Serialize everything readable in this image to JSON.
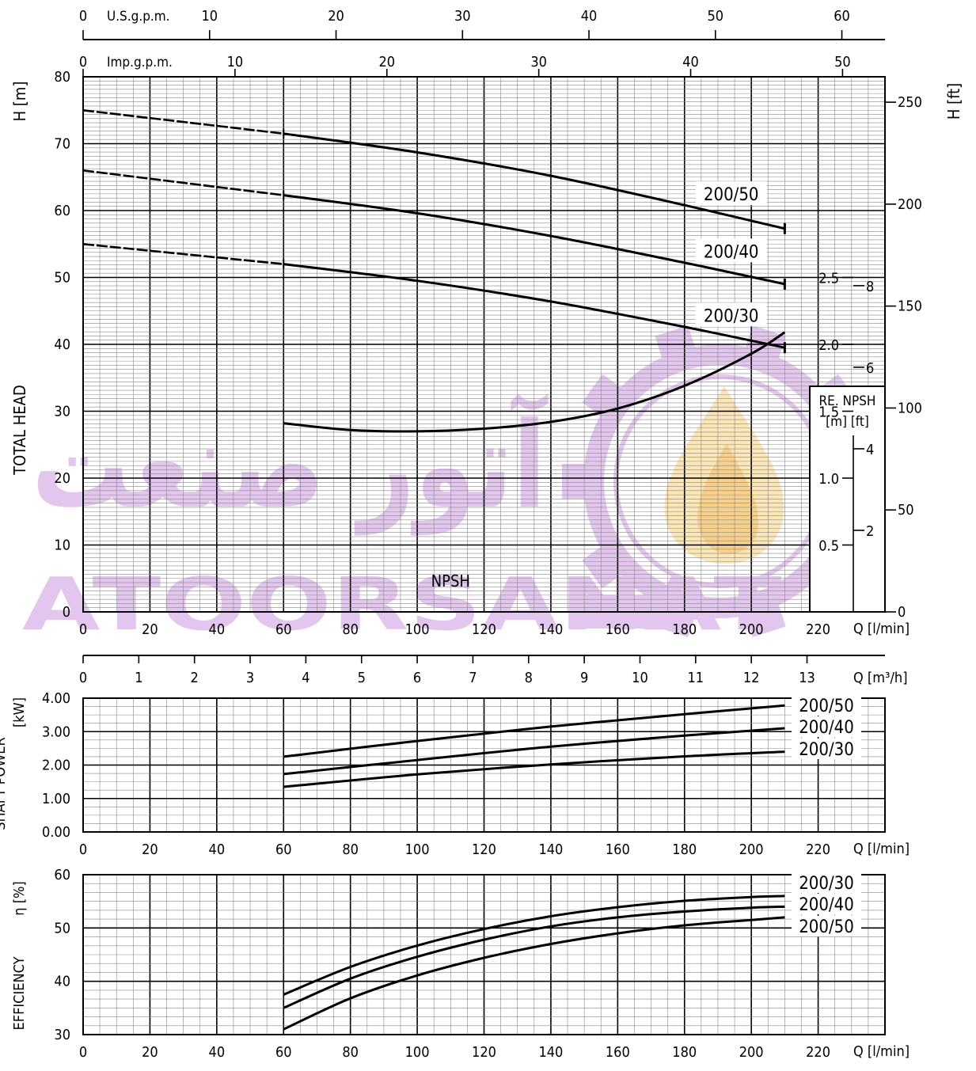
{
  "watermark": {
    "latin": "ATOORSANAT",
    "farsi": "آتور صنعت",
    "color": "#e3c6ee",
    "flame_colors": [
      "#fbe6b6",
      "#f7d18a"
    ]
  },
  "colors": {
    "line": "#000000",
    "grid_minor": "#888888",
    "grid_major": "#000000",
    "label_bg": "#ffffff"
  },
  "chart_data": [
    {
      "id": "head",
      "type": "line",
      "title": "",
      "ylabel": "TOTAL HEAD",
      "y_unit": "H [m]",
      "y2_unit": "H [ft]",
      "xlabel": "Q [l/min]",
      "x_unit_label": "Q [l/min]",
      "xlim": [
        0,
        240
      ],
      "ylim": [
        0,
        80
      ],
      "y2lim": [
        0,
        262.47
      ],
      "x_ticks": [
        0,
        20,
        40,
        60,
        80,
        100,
        120,
        140,
        160,
        180,
        200,
        220
      ],
      "y_ticks": [
        0,
        10,
        20,
        30,
        40,
        50,
        60,
        70,
        80
      ],
      "y2_ticks": [
        0,
        50,
        100,
        150,
        200,
        250
      ],
      "grid": true,
      "top_axes": [
        {
          "label": "U.S.g.p.m.",
          "ticks": [
            0,
            10,
            20,
            30,
            40,
            50,
            60
          ],
          "lpm_per_unit": 3.785
        },
        {
          "label": "Imp.g.p.m.",
          "ticks": [
            0,
            10,
            20,
            30,
            40,
            50
          ],
          "lpm_per_unit": 4.546
        }
      ],
      "bottom_axis_m3h": {
        "label": "Q [m³/h]",
        "ticks": [
          0,
          1,
          2,
          3,
          4,
          5,
          6,
          7,
          8,
          9,
          10,
          11,
          12,
          13
        ]
      },
      "series": [
        {
          "name": "200/50",
          "x": [
            0,
            60,
            100,
            140,
            180,
            210
          ],
          "y": [
            75,
            71.5,
            68.7,
            65.2,
            60.8,
            57.3
          ],
          "dashed_until": 60
        },
        {
          "name": "200/40",
          "x": [
            0,
            60,
            100,
            140,
            180,
            210
          ],
          "y": [
            66,
            62.3,
            59.6,
            56.2,
            52.2,
            49
          ]
        },
        {
          "name": "200/30",
          "x": [
            0,
            60,
            100,
            140,
            180,
            210
          ],
          "y": [
            55,
            52,
            49.5,
            46.4,
            42.6,
            39.5
          ]
        }
      ],
      "npsh": {
        "name": "NPSH",
        "inset_title": "RE. NPSH",
        "inset_units": "[m] [ft]",
        "m_ticks": [
          "0.5",
          "1.0",
          "1.5",
          "2.0",
          "2.5"
        ],
        "ft_ticks": [
          "2",
          "4",
          "6",
          "8"
        ],
        "x": [
          60,
          80,
          100,
          120,
          140,
          160,
          180,
          200,
          210
        ],
        "y": [
          1.41,
          1.36,
          1.35,
          1.37,
          1.42,
          1.52,
          1.69,
          1.93,
          2.09
        ]
      }
    },
    {
      "id": "power",
      "type": "line",
      "ylabel": "SHAFT POWER",
      "y_unit": "[kW]",
      "xlabel": "Q [l/min]",
      "x_unit_label": "Q [l/min]",
      "xlim": [
        0,
        240
      ],
      "ylim": [
        0,
        4
      ],
      "x_ticks": [
        0,
        20,
        40,
        60,
        80,
        100,
        120,
        140,
        160,
        180,
        200,
        220
      ],
      "y_ticks": [
        "0.00",
        "1.00",
        "2.00",
        "3.00",
        "4.00"
      ],
      "grid": true,
      "series": [
        {
          "name": "200/50",
          "x": [
            60,
            100,
            140,
            180,
            210
          ],
          "y": [
            2.25,
            2.72,
            3.15,
            3.52,
            3.78
          ]
        },
        {
          "name": "200/40",
          "x": [
            60,
            100,
            140,
            180,
            210
          ],
          "y": [
            1.73,
            2.15,
            2.55,
            2.88,
            3.1
          ]
        },
        {
          "name": "200/30",
          "x": [
            60,
            100,
            140,
            180,
            210
          ],
          "y": [
            1.35,
            1.72,
            2.02,
            2.26,
            2.4
          ]
        }
      ]
    },
    {
      "id": "efficiency",
      "type": "line",
      "ylabel": "EFFICIENCY",
      "y_unit": "η [%]",
      "xlabel": "Q [l/min]",
      "x_unit_label": "Q [l/min]",
      "xlim": [
        0,
        240
      ],
      "ylim": [
        30,
        60
      ],
      "x_ticks": [
        0,
        20,
        40,
        60,
        80,
        100,
        120,
        140,
        160,
        180,
        200,
        220
      ],
      "y_ticks": [
        30,
        40,
        50,
        60
      ],
      "grid": true,
      "series": [
        {
          "name": "200/30",
          "x": [
            60,
            80,
            100,
            120,
            140,
            160,
            180,
            200,
            210
          ],
          "y": [
            37.5,
            42.7,
            46.7,
            49.8,
            52.2,
            53.9,
            55.1,
            55.8,
            56
          ]
        },
        {
          "name": "200/40",
          "x": [
            60,
            80,
            100,
            120,
            140,
            160,
            180,
            200,
            210
          ],
          "y": [
            35,
            40.5,
            44.6,
            47.8,
            50.3,
            52,
            53.1,
            53.8,
            54
          ]
        },
        {
          "name": "200/50",
          "x": [
            60,
            80,
            100,
            120,
            140,
            160,
            180,
            200,
            210
          ],
          "y": [
            31,
            36.8,
            41.1,
            44.4,
            47,
            49,
            50.5,
            51.5,
            52
          ]
        }
      ]
    }
  ]
}
